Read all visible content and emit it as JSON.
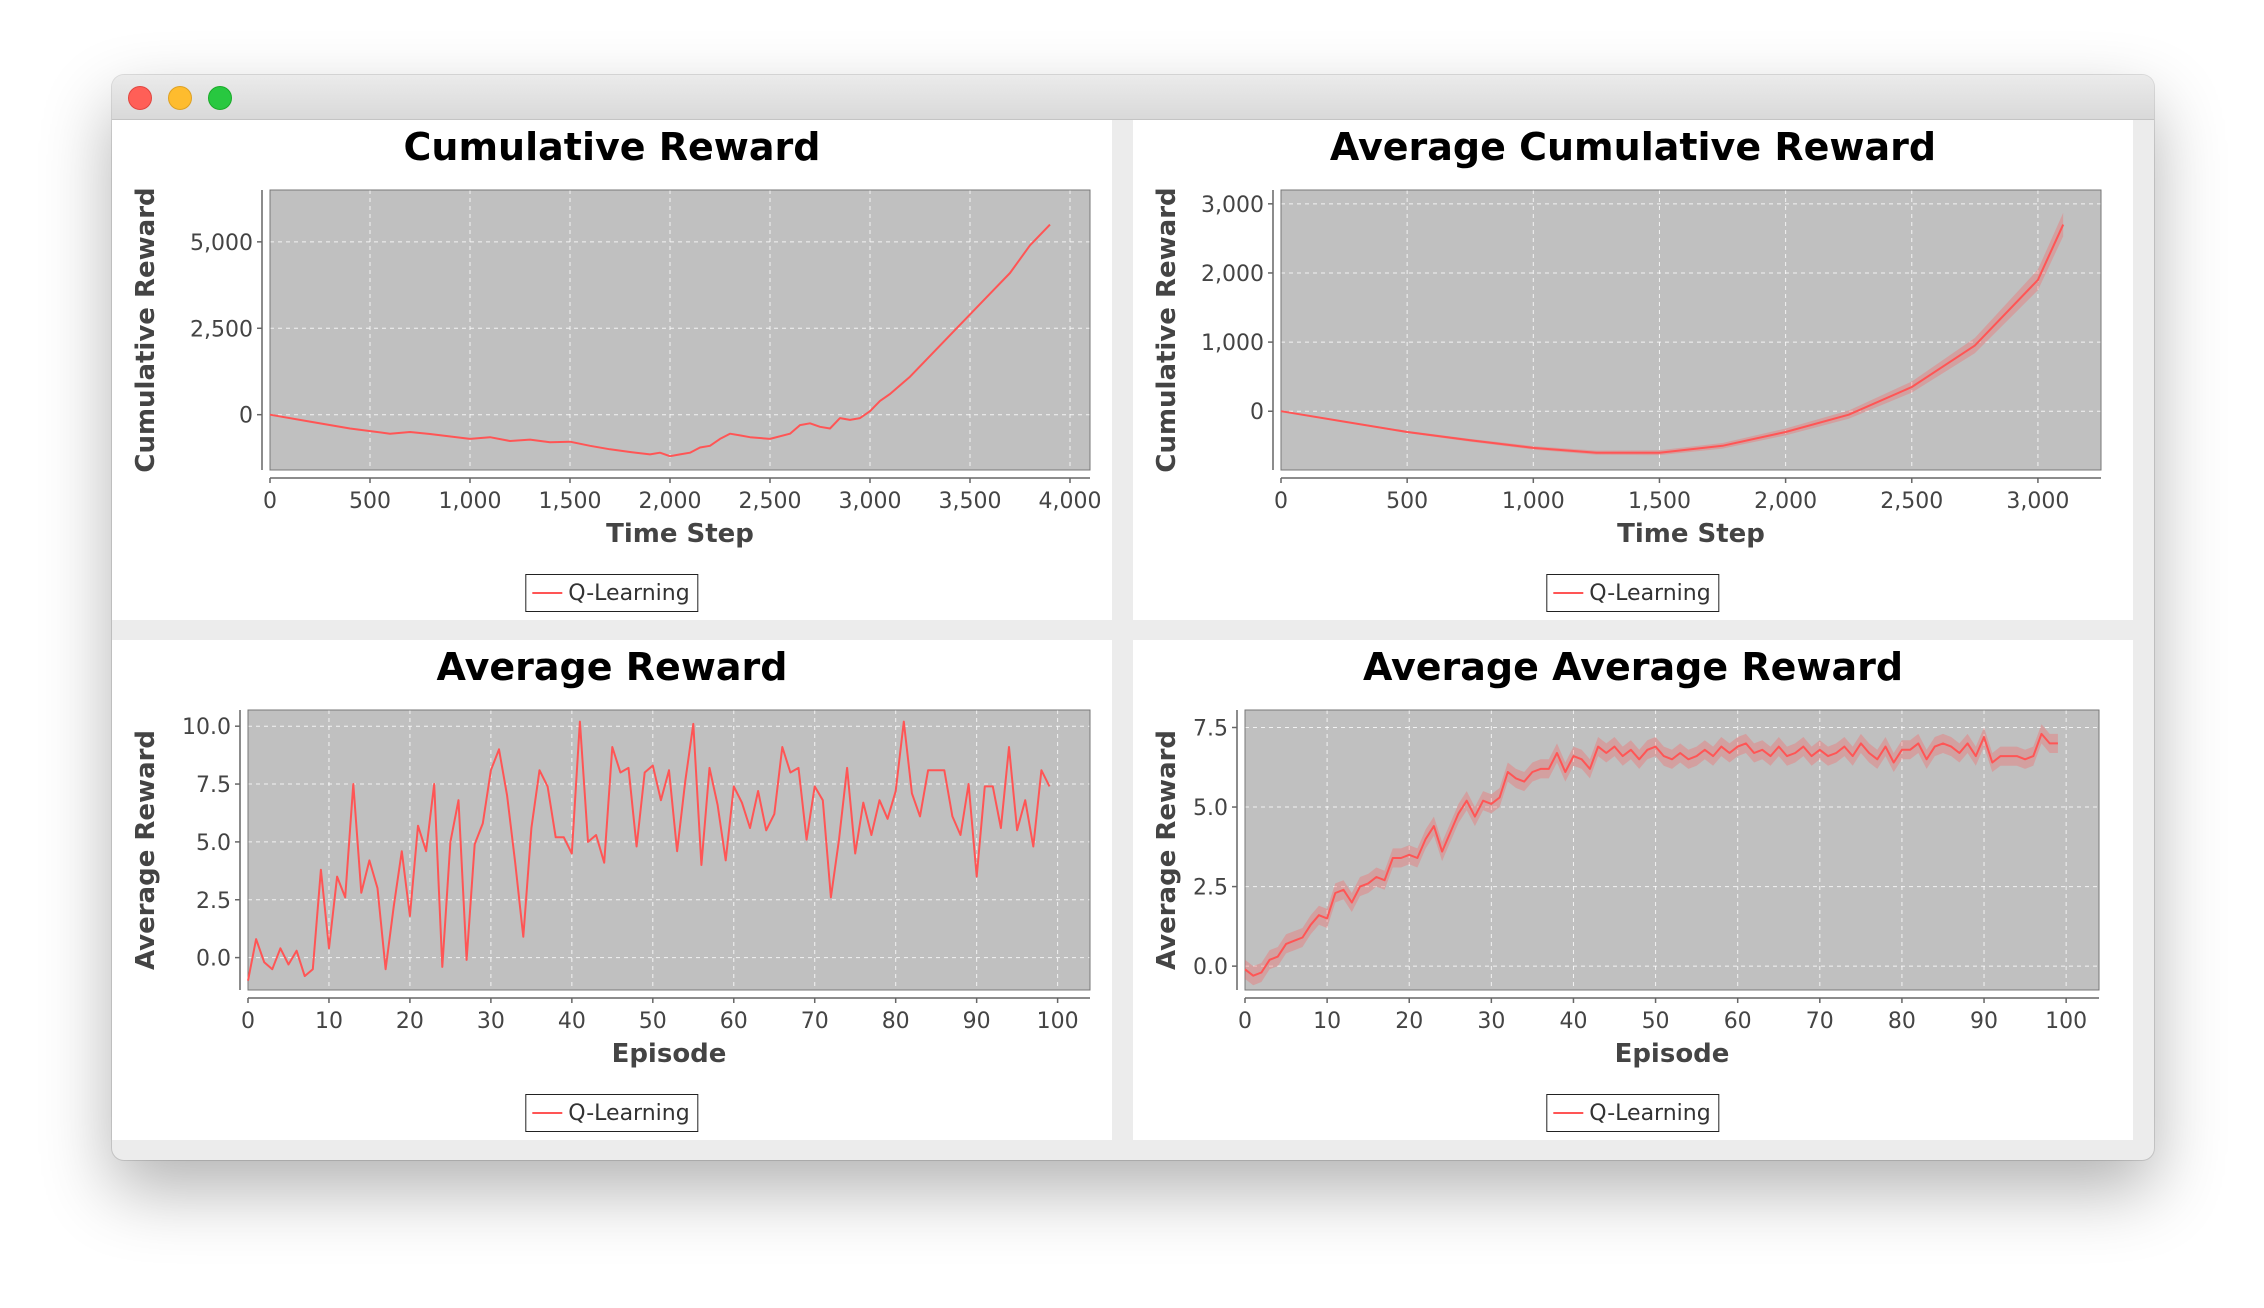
{
  "window": {
    "title": ""
  },
  "chart_data": [
    {
      "type": "line",
      "title": "Cumulative Reward",
      "xlabel": "Time Step",
      "ylabel": "Cumulative Reward",
      "xlim": [
        0,
        4100
      ],
      "ylim": [
        -1600,
        6500
      ],
      "xticks": [
        0,
        500,
        1000,
        1500,
        2000,
        2500,
        3000,
        3500,
        4000
      ],
      "xtick_labels": [
        "0",
        "500",
        "1,000",
        "1,500",
        "2,000",
        "2,500",
        "3,000",
        "3,500",
        "4,000"
      ],
      "yticks": [
        0,
        2500,
        5000
      ],
      "ytick_labels": [
        "0",
        "2,500",
        "5,000"
      ],
      "grid": true,
      "legend": "bottom-center",
      "series": [
        {
          "name": "Q-Learning",
          "color": "#ff5555",
          "band": false,
          "x": [
            0,
            200,
            400,
            600,
            700,
            800,
            1000,
            1100,
            1200,
            1300,
            1400,
            1500,
            1600,
            1700,
            1800,
            1900,
            1950,
            2000,
            2050,
            2100,
            2150,
            2200,
            2250,
            2300,
            2350,
            2400,
            2500,
            2600,
            2650,
            2700,
            2750,
            2800,
            2850,
            2900,
            2950,
            3000,
            3050,
            3100,
            3200,
            3300,
            3400,
            3500,
            3600,
            3700,
            3800,
            3900
          ],
          "y": [
            0,
            -200,
            -400,
            -550,
            -500,
            -560,
            -700,
            -650,
            -760,
            -720,
            -800,
            -780,
            -900,
            -1000,
            -1080,
            -1150,
            -1100,
            -1200,
            -1150,
            -1100,
            -950,
            -900,
            -700,
            -550,
            -600,
            -650,
            -700,
            -550,
            -300,
            -250,
            -350,
            -400,
            -100,
            -150,
            -100,
            100,
            400,
            600,
            1100,
            1700,
            2300,
            2900,
            3500,
            4100,
            4900,
            5500
          ]
        }
      ]
    },
    {
      "type": "line",
      "title": "Average Cumulative Reward",
      "xlabel": "Time Step",
      "ylabel": "Cumulative Reward",
      "xlim": [
        0,
        3250
      ],
      "ylim": [
        -850,
        3200
      ],
      "xticks": [
        0,
        500,
        1000,
        1500,
        2000,
        2500,
        3000
      ],
      "xtick_labels": [
        "0",
        "500",
        "1,000",
        "1,500",
        "2,000",
        "2,500",
        "3,000"
      ],
      "yticks": [
        0,
        1000,
        2000,
        3000
      ],
      "ytick_labels": [
        "0",
        "1,000",
        "2,000",
        "3,000"
      ],
      "grid": true,
      "legend": "bottom-center",
      "series": [
        {
          "name": "Q-Learning",
          "color": "#ff5555",
          "band": true,
          "x": [
            0,
            250,
            500,
            750,
            1000,
            1250,
            1500,
            1750,
            2000,
            2250,
            2500,
            2750,
            3000,
            3100
          ],
          "y": [
            0,
            -150,
            -300,
            -420,
            -530,
            -600,
            -600,
            -500,
            -300,
            -50,
            350,
            950,
            1900,
            2700
          ],
          "band_width": [
            0,
            10,
            15,
            20,
            25,
            30,
            35,
            40,
            50,
            60,
            80,
            110,
            150,
            170
          ]
        }
      ]
    },
    {
      "type": "line",
      "title": "Average Reward",
      "xlabel": "Episode",
      "ylabel": "Average Reward",
      "xlim": [
        0,
        104
      ],
      "ylim": [
        -1.4,
        10.7
      ],
      "xticks": [
        0,
        10,
        20,
        30,
        40,
        50,
        60,
        70,
        80,
        90,
        100
      ],
      "xtick_labels": [
        "0",
        "10",
        "20",
        "30",
        "40",
        "50",
        "60",
        "70",
        "80",
        "90",
        "100"
      ],
      "yticks": [
        0,
        2.5,
        5,
        7.5,
        10
      ],
      "ytick_labels": [
        "0.0",
        "2.5",
        "5.0",
        "7.5",
        "10.0"
      ],
      "grid": true,
      "legend": "bottom-center",
      "series": [
        {
          "name": "Q-Learning",
          "color": "#ff5555",
          "band": false,
          "x": [
            0,
            1,
            2,
            3,
            4,
            5,
            6,
            7,
            8,
            9,
            10,
            11,
            12,
            13,
            14,
            15,
            16,
            17,
            18,
            19,
            20,
            21,
            22,
            23,
            24,
            25,
            26,
            27,
            28,
            29,
            30,
            31,
            32,
            33,
            34,
            35,
            36,
            37,
            38,
            39,
            40,
            41,
            42,
            43,
            44,
            45,
            46,
            47,
            48,
            49,
            50,
            51,
            52,
            53,
            54,
            55,
            56,
            57,
            58,
            59,
            60,
            61,
            62,
            63,
            64,
            65,
            66,
            67,
            68,
            69,
            70,
            71,
            72,
            73,
            74,
            75,
            76,
            77,
            78,
            79,
            80,
            81,
            82,
            83,
            84,
            85,
            86,
            87,
            88,
            89,
            90,
            91,
            92,
            93,
            94,
            95,
            96,
            97,
            98,
            99
          ],
          "y": [
            -1.0,
            0.8,
            -0.2,
            -0.5,
            0.4,
            -0.3,
            0.3,
            -0.8,
            -0.5,
            3.8,
            0.4,
            3.5,
            2.6,
            7.5,
            2.8,
            4.2,
            3.0,
            -0.5,
            2.2,
            4.6,
            1.8,
            5.7,
            4.6,
            7.5,
            -0.4,
            5.0,
            6.8,
            -0.1,
            4.9,
            5.8,
            8.1,
            9.0,
            7.0,
            4.1,
            0.9,
            5.6,
            8.1,
            7.4,
            5.2,
            5.2,
            4.5,
            10.2,
            5.0,
            5.3,
            4.1,
            9.1,
            8.0,
            8.2,
            4.8,
            8.0,
            8.3,
            6.8,
            8.1,
            4.6,
            7.6,
            10.1,
            4.0,
            8.2,
            6.6,
            4.2,
            7.4,
            6.7,
            5.6,
            7.2,
            5.5,
            6.2,
            9.1,
            8.0,
            8.2,
            5.1,
            7.4,
            6.8,
            2.6,
            5.1,
            8.2,
            4.5,
            6.7,
            5.3,
            6.8,
            6.0,
            7.2,
            10.2,
            7.1,
            6.1,
            8.1,
            8.1,
            8.1,
            6.1,
            5.3,
            7.5,
            3.5,
            7.4,
            7.4,
            5.6,
            9.1,
            5.5,
            6.8,
            4.8,
            8.1,
            7.4
          ]
        }
      ]
    },
    {
      "type": "line",
      "title": "Average Average Reward",
      "xlabel": "Episode",
      "ylabel": "Average Reward",
      "xlim": [
        0,
        104
      ],
      "ylim": [
        -0.75,
        8.05
      ],
      "xticks": [
        0,
        10,
        20,
        30,
        40,
        50,
        60,
        70,
        80,
        90,
        100
      ],
      "xtick_labels": [
        "0",
        "10",
        "20",
        "30",
        "40",
        "50",
        "60",
        "70",
        "80",
        "90",
        "100"
      ],
      "yticks": [
        0,
        2.5,
        5,
        7.5
      ],
      "ytick_labels": [
        "0.0",
        "2.5",
        "5.0",
        "7.5"
      ],
      "grid": true,
      "legend": "bottom-center",
      "series": [
        {
          "name": "Q-Learning",
          "color": "#ff5555",
          "band": true,
          "band_width": 0.3,
          "x": [
            0,
            1,
            2,
            3,
            4,
            5,
            6,
            7,
            8,
            9,
            10,
            11,
            12,
            13,
            14,
            15,
            16,
            17,
            18,
            19,
            20,
            21,
            22,
            23,
            24,
            25,
            26,
            27,
            28,
            29,
            30,
            31,
            32,
            33,
            34,
            35,
            36,
            37,
            38,
            39,
            40,
            41,
            42,
            43,
            44,
            45,
            46,
            47,
            48,
            49,
            50,
            51,
            52,
            53,
            54,
            55,
            56,
            57,
            58,
            59,
            60,
            61,
            62,
            63,
            64,
            65,
            66,
            67,
            68,
            69,
            70,
            71,
            72,
            73,
            74,
            75,
            76,
            77,
            78,
            79,
            80,
            81,
            82,
            83,
            84,
            85,
            86,
            87,
            88,
            89,
            90,
            91,
            92,
            93,
            94,
            95,
            96,
            97,
            98,
            99
          ],
          "y": [
            -0.1,
            -0.3,
            -0.2,
            0.2,
            0.3,
            0.7,
            0.8,
            0.9,
            1.3,
            1.6,
            1.5,
            2.3,
            2.4,
            2.0,
            2.5,
            2.6,
            2.8,
            2.7,
            3.4,
            3.4,
            3.5,
            3.4,
            4.0,
            4.4,
            3.6,
            4.2,
            4.8,
            5.2,
            4.7,
            5.2,
            5.1,
            5.3,
            6.1,
            5.9,
            5.8,
            6.1,
            6.2,
            6.2,
            6.7,
            6.1,
            6.6,
            6.5,
            6.2,
            6.9,
            6.7,
            6.9,
            6.6,
            6.8,
            6.5,
            6.8,
            6.9,
            6.6,
            6.5,
            6.7,
            6.5,
            6.6,
            6.8,
            6.6,
            6.9,
            6.7,
            6.9,
            7.0,
            6.7,
            6.8,
            6.6,
            6.9,
            6.6,
            6.7,
            6.9,
            6.6,
            6.8,
            6.6,
            6.7,
            6.9,
            6.6,
            7.0,
            6.7,
            6.5,
            6.9,
            6.4,
            6.8,
            6.8,
            7.0,
            6.5,
            6.9,
            7.0,
            6.9,
            6.7,
            7.0,
            6.6,
            7.2,
            6.4,
            6.6,
            6.6,
            6.6,
            6.5,
            6.6,
            7.3,
            7.0,
            7.0
          ]
        }
      ]
    }
  ]
}
